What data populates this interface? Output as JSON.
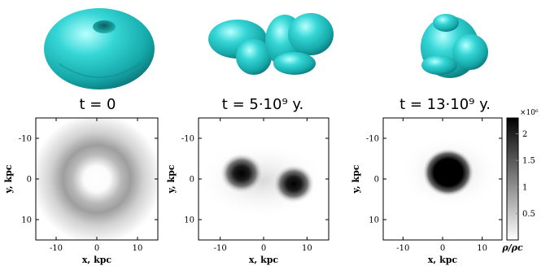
{
  "panels": [
    {
      "time_label": "t = 0",
      "shape": "torus"
    },
    {
      "time_label": "t = 5·10⁹ y.",
      "shape": "binary-lobes"
    },
    {
      "time_label": "t = 13·10⁹ y.",
      "shape": "central-blob"
    }
  ],
  "axes": {
    "x_label": "x, kpc",
    "y_label": "y, kpc",
    "x_ticks": [
      "-10",
      "0",
      "10"
    ],
    "y_ticks": [
      "-10",
      "0",
      "10"
    ],
    "range": [
      -15,
      15
    ]
  },
  "colorbar": {
    "multiplier": "×10⁶",
    "label": "ρ/ρc",
    "ticks": [
      "2",
      "1.5",
      "1",
      "0.5"
    ],
    "range": [
      0,
      2.3
    ]
  },
  "colors": {
    "surface": "#2ec9c9",
    "surface_dark": "#0b6f72",
    "density_max": "#000000",
    "density_min": "#ffffff"
  }
}
